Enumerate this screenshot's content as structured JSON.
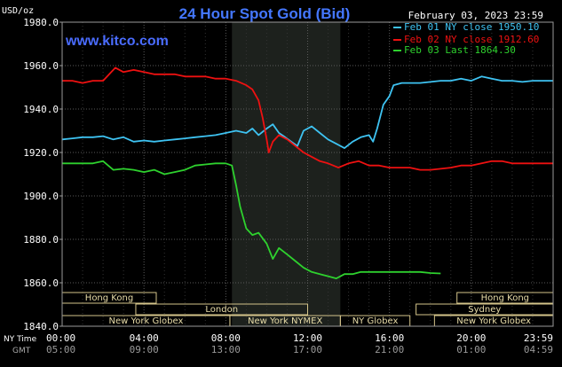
{
  "chart_data": {
    "type": "line",
    "title": "24 Hour Spot Gold (Bid)",
    "unit_label": "USD/oz",
    "date_label": "February 03, 2023 23:59",
    "watermark": "www.kitco.com",
    "ylim": [
      1840,
      1980
    ],
    "yticks": [
      {
        "value": 1980,
        "label": "1980.0"
      },
      {
        "value": 1960,
        "label": "1960.0"
      },
      {
        "value": 1940,
        "label": "1940.0"
      },
      {
        "value": 1920,
        "label": "1920.0"
      },
      {
        "value": 1900,
        "label": "1900.0"
      },
      {
        "value": 1880,
        "label": "1880.0"
      },
      {
        "value": 1860,
        "label": "1860.0"
      },
      {
        "value": 1840,
        "label": "1840.0"
      }
    ],
    "xlim": [
      0,
      24
    ],
    "xticks": [
      {
        "value": 0,
        "ny": "00:00",
        "gmt": "05:00"
      },
      {
        "value": 4,
        "ny": "04:00",
        "gmt": "09:00"
      },
      {
        "value": 8,
        "ny": "08:00",
        "gmt": "13:00"
      },
      {
        "value": 12,
        "ny": "12:00",
        "gmt": "17:00"
      },
      {
        "value": 16,
        "ny": "16:00",
        "gmt": "21:00"
      },
      {
        "value": 20,
        "ny": "20:00",
        "gmt": "01:00"
      },
      {
        "value": 24,
        "ny": "23:59",
        "gmt": "04:59"
      }
    ],
    "x_row_labels": {
      "ny": "NY Time",
      "gmt": "GMT"
    },
    "grid": true,
    "shaded_range": [
      8.3,
      13.6
    ],
    "legend_position": "top-right",
    "series": [
      {
        "name": "Feb 01 NY close 1950.10",
        "color": "#3ec3f2",
        "points": [
          [
            0,
            1926
          ],
          [
            0.5,
            1926.5
          ],
          [
            1,
            1927
          ],
          [
            1.5,
            1927
          ],
          [
            2,
            1927.5
          ],
          [
            2.5,
            1926
          ],
          [
            3,
            1927
          ],
          [
            3.5,
            1925
          ],
          [
            4,
            1925.5
          ],
          [
            4.5,
            1925
          ],
          [
            5,
            1925.5
          ],
          [
            5.5,
            1926
          ],
          [
            6,
            1926.5
          ],
          [
            6.5,
            1927
          ],
          [
            7,
            1927.5
          ],
          [
            7.5,
            1928
          ],
          [
            8,
            1929
          ],
          [
            8.5,
            1930
          ],
          [
            9,
            1929
          ],
          [
            9.3,
            1931
          ],
          [
            9.6,
            1928
          ],
          [
            10,
            1931
          ],
          [
            10.3,
            1933
          ],
          [
            10.6,
            1929
          ],
          [
            10.9,
            1927
          ],
          [
            11.2,
            1925
          ],
          [
            11.5,
            1923
          ],
          [
            11.8,
            1930
          ],
          [
            12.2,
            1932
          ],
          [
            12.6,
            1929
          ],
          [
            13,
            1926
          ],
          [
            13.4,
            1924
          ],
          [
            13.8,
            1922
          ],
          [
            14.2,
            1925
          ],
          [
            14.6,
            1927
          ],
          [
            15,
            1928
          ],
          [
            15.2,
            1925
          ],
          [
            15.4,
            1931
          ],
          [
            15.7,
            1942
          ],
          [
            16,
            1946
          ],
          [
            16.2,
            1951
          ],
          [
            16.6,
            1952
          ],
          [
            17,
            1952
          ],
          [
            17.5,
            1952
          ],
          [
            18,
            1952.5
          ],
          [
            18.5,
            1953
          ],
          [
            19,
            1953
          ],
          [
            19.5,
            1954
          ],
          [
            20,
            1953
          ],
          [
            20.5,
            1955
          ],
          [
            21,
            1954
          ],
          [
            21.5,
            1953
          ],
          [
            22,
            1953
          ],
          [
            22.5,
            1952.5
          ],
          [
            23,
            1953
          ],
          [
            23.5,
            1953
          ],
          [
            24,
            1953
          ]
        ]
      },
      {
        "name": "Feb 02 NY close 1912.60",
        "color": "#ee1111",
        "points": [
          [
            0,
            1953
          ],
          [
            0.5,
            1953
          ],
          [
            1,
            1952
          ],
          [
            1.5,
            1953
          ],
          [
            2,
            1953
          ],
          [
            2.3,
            1956
          ],
          [
            2.6,
            1959
          ],
          [
            3,
            1957
          ],
          [
            3.5,
            1958
          ],
          [
            4,
            1957
          ],
          [
            4.5,
            1956
          ],
          [
            5,
            1956
          ],
          [
            5.5,
            1956
          ],
          [
            6,
            1955
          ],
          [
            6.5,
            1955
          ],
          [
            7,
            1955
          ],
          [
            7.5,
            1954
          ],
          [
            8,
            1954
          ],
          [
            8.5,
            1953
          ],
          [
            9,
            1951
          ],
          [
            9.3,
            1949
          ],
          [
            9.6,
            1944
          ],
          [
            9.8,
            1936
          ],
          [
            10,
            1926
          ],
          [
            10.1,
            1920
          ],
          [
            10.3,
            1925
          ],
          [
            10.6,
            1928
          ],
          [
            11,
            1926
          ],
          [
            11.4,
            1923
          ],
          [
            11.8,
            1920
          ],
          [
            12.2,
            1918
          ],
          [
            12.6,
            1916
          ],
          [
            13,
            1915
          ],
          [
            13.5,
            1913
          ],
          [
            14,
            1915
          ],
          [
            14.5,
            1916
          ],
          [
            15,
            1914
          ],
          [
            15.5,
            1914
          ],
          [
            16,
            1913
          ],
          [
            16.5,
            1913
          ],
          [
            17,
            1913
          ],
          [
            17.5,
            1912
          ],
          [
            18,
            1912
          ],
          [
            18.5,
            1912.5
          ],
          [
            19,
            1913
          ],
          [
            19.5,
            1914
          ],
          [
            20,
            1914
          ],
          [
            20.5,
            1915
          ],
          [
            21,
            1916
          ],
          [
            21.5,
            1916
          ],
          [
            22,
            1915
          ],
          [
            22.5,
            1915
          ],
          [
            23,
            1915
          ],
          [
            23.5,
            1915
          ],
          [
            24,
            1915
          ]
        ]
      },
      {
        "name": "Feb 03 Last 1864.30",
        "color": "#2ed12e",
        "points": [
          [
            0,
            1915
          ],
          [
            0.5,
            1915
          ],
          [
            1,
            1915
          ],
          [
            1.5,
            1915
          ],
          [
            2,
            1916
          ],
          [
            2.5,
            1912
          ],
          [
            3,
            1912.5
          ],
          [
            3.5,
            1912
          ],
          [
            4,
            1911
          ],
          [
            4.5,
            1912
          ],
          [
            5,
            1910
          ],
          [
            5.5,
            1911
          ],
          [
            6,
            1912
          ],
          [
            6.5,
            1914
          ],
          [
            7,
            1914.5
          ],
          [
            7.5,
            1915
          ],
          [
            8,
            1915
          ],
          [
            8.3,
            1914
          ],
          [
            8.5,
            1905
          ],
          [
            8.7,
            1895
          ],
          [
            9,
            1885
          ],
          [
            9.3,
            1882
          ],
          [
            9.6,
            1883
          ],
          [
            10,
            1878
          ],
          [
            10.3,
            1871
          ],
          [
            10.6,
            1876
          ],
          [
            11,
            1873
          ],
          [
            11.4,
            1870
          ],
          [
            11.8,
            1867
          ],
          [
            12.2,
            1865
          ],
          [
            12.6,
            1864
          ],
          [
            13,
            1863
          ],
          [
            13.4,
            1862
          ],
          [
            13.8,
            1864
          ],
          [
            14.2,
            1864
          ],
          [
            14.6,
            1865
          ],
          [
            15,
            1865
          ],
          [
            15.5,
            1865
          ],
          [
            16,
            1865
          ],
          [
            16.5,
            1865
          ],
          [
            17,
            1865
          ],
          [
            17.5,
            1865
          ],
          [
            18,
            1864.5
          ],
          [
            18.5,
            1864.3
          ]
        ]
      }
    ],
    "session_rows": [
      [
        {
          "label": "Hong Kong",
          "start": 0,
          "end": 4.6
        },
        {
          "label": "Hong Kong",
          "start": 19.3,
          "end": 24
        }
      ],
      [
        {
          "label": "London",
          "start": 3.6,
          "end": 12
        },
        {
          "label": "Sydney",
          "start": 17.3,
          "end": 24
        }
      ],
      [
        {
          "label": "New York Globex",
          "start": 0,
          "end": 8.2
        },
        {
          "label": "New York NYMEX",
          "start": 8.2,
          "end": 13.6
        },
        {
          "label": "NY Globex",
          "start": 13.6,
          "end": 17
        },
        {
          "label": "New York Globex",
          "start": 18.2,
          "end": 24
        }
      ]
    ]
  }
}
